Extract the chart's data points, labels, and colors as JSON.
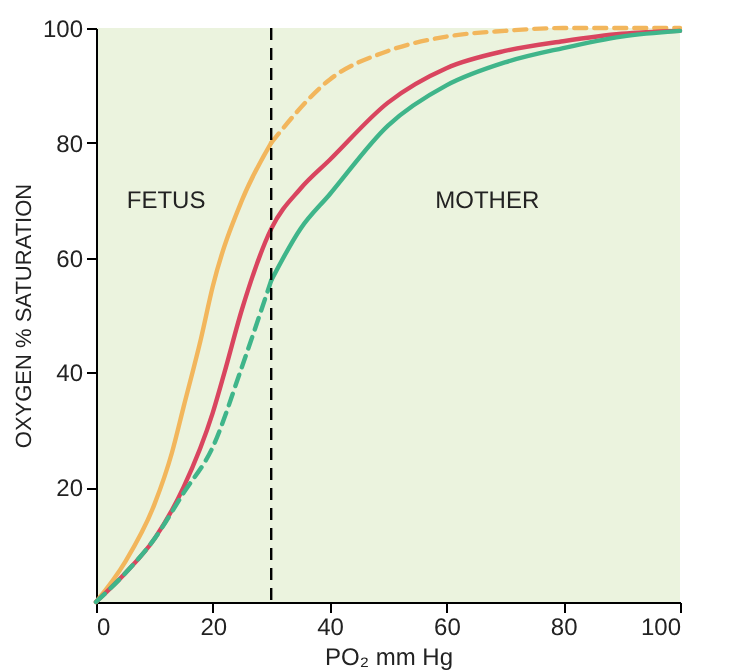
{
  "chart_data": {
    "type": "line",
    "xlabel": "PO₂ mm Hg",
    "ylabel": "OXYGEN % SATURATION",
    "xlim": [
      0,
      100
    ],
    "ylim": [
      0,
      100
    ],
    "xticks": [
      0,
      20,
      40,
      60,
      80,
      100
    ],
    "yticks": [
      20,
      40,
      60,
      80,
      100
    ],
    "grid": false,
    "marker": "none",
    "series": [
      {
        "color": "#f2b65c",
        "line_style": "solid",
        "x": [
          0,
          5,
          10,
          13,
          15,
          18,
          20,
          25,
          30
        ],
        "values": [
          0,
          7,
          17,
          26,
          34,
          46,
          55,
          70,
          80
        ]
      },
      {
        "color": "#f2b65c",
        "line_style": "dashed",
        "x": [
          30,
          40,
          50,
          60,
          70,
          80,
          90,
          100
        ],
        "values": [
          80,
          91,
          96,
          98.5,
          99.5,
          100,
          100,
          100
        ]
      },
      {
        "color": "#d9455f",
        "line_style": "solid",
        "x": [
          0,
          5,
          10,
          15,
          20,
          22,
          25,
          30,
          35,
          40,
          50,
          60,
          70,
          80,
          90,
          100
        ],
        "values": [
          0,
          5,
          11,
          20,
          33,
          40,
          51,
          65,
          72,
          77,
          87,
          93,
          96,
          97.7,
          99,
          99.5
        ]
      },
      {
        "color": "#3fb58a",
        "line_style": "dashed",
        "x": [
          0,
          5,
          10,
          15,
          20,
          25,
          30
        ],
        "values": [
          0,
          5,
          11,
          19,
          27,
          41,
          56
        ]
      },
      {
        "color": "#3fb58a",
        "line_style": "solid",
        "x": [
          30,
          35,
          40,
          50,
          60,
          70,
          80,
          90,
          100
        ],
        "values": [
          56,
          65,
          71,
          83,
          90,
          94,
          96.5,
          98.5,
          99.5
        ]
      }
    ],
    "ref_lines": [
      {
        "axis": "x",
        "value": 30,
        "line_style": "dashed",
        "color": "#000000"
      }
    ],
    "annotations": [
      "FETUS",
      "MOTHER"
    ]
  }
}
